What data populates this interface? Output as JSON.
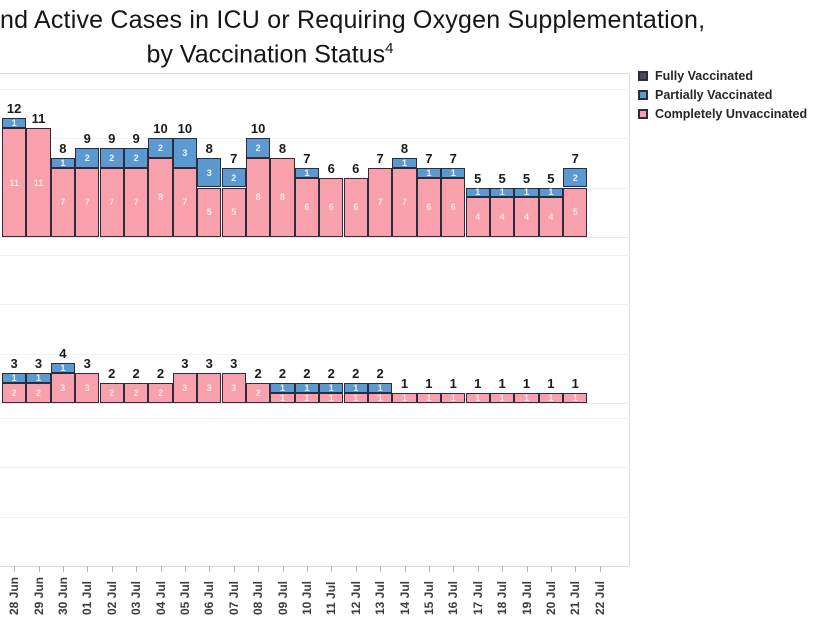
{
  "title": {
    "line1": "nd Active Cases in ICU or Requiring Oxygen Supplementation,",
    "line2": "by Vaccination Status",
    "superscript": "4"
  },
  "legend": {
    "items": [
      {
        "label": "Fully Vaccinated",
        "color": "#484b5a"
      },
      {
        "label": "Partially Vaccinated",
        "color": "#5b9ad0"
      },
      {
        "label": "Completely Unvaccinated",
        "color": "#f8a1ac"
      }
    ]
  },
  "colors": {
    "fully_vaccinated": "#484b5a",
    "partially_vaccinated": "#5b9ad0",
    "completely_unvaccinated": "#f8a1ac",
    "bar_border": "#2b2c3c",
    "grid": "#f2f2f2",
    "axis": "#d9d9d9"
  },
  "chart_data": {
    "type": "bar",
    "stacked": true,
    "grid": "horizontal, every 5 units, very light",
    "legend_position": "top-right",
    "x_tick_rotation": -90,
    "categories": [
      "28 Jun",
      "29 Jun",
      "30 Jun",
      "01 Jul",
      "02 Jul",
      "03 Jul",
      "04 Jul",
      "05 Jul",
      "06 Jul",
      "07 Jul",
      "08 Jul",
      "09 Jul",
      "10 Jul",
      "11 Jul",
      "12 Jul",
      "13 Jul",
      "14 Jul",
      "15 Jul",
      "16 Jul",
      "17 Jul",
      "18 Jul",
      "19 Jul",
      "20 Jul",
      "21 Jul",
      "22 Jul"
    ],
    "panels": [
      {
        "name": "top-panel",
        "ylim": [
          0,
          16.5
        ],
        "series": [
          {
            "name": "Fully Vaccinated",
            "values": [
              0,
              0,
              0,
              0,
              0,
              0,
              0,
              0,
              0,
              0,
              0,
              0,
              0,
              0,
              0,
              0,
              0,
              0,
              0,
              0,
              0,
              0,
              0,
              0,
              0
            ]
          },
          {
            "name": "Partially Vaccinated",
            "values": [
              1,
              0,
              1,
              2,
              2,
              2,
              2,
              3,
              3,
              2,
              2,
              0,
              1,
              0,
              0,
              0,
              1,
              1,
              1,
              1,
              1,
              1,
              1,
              2,
              0
            ]
          },
          {
            "name": "Completely Unvaccinated",
            "values": [
              11,
              11,
              7,
              7,
              7,
              7,
              8,
              7,
              5,
              5,
              8,
              8,
              6,
              6,
              6,
              7,
              7,
              6,
              6,
              4,
              4,
              4,
              4,
              5,
              0
            ]
          }
        ],
        "totals": [
          12,
          11,
          8,
          9,
          9,
          9,
          10,
          10,
          8,
          7,
          10,
          8,
          7,
          6,
          6,
          7,
          8,
          7,
          7,
          5,
          5,
          5,
          5,
          7,
          null
        ]
      },
      {
        "name": "bottom-panel",
        "ylim": [
          0,
          16.5
        ],
        "series": [
          {
            "name": "Fully Vaccinated",
            "values": [
              0,
              0,
              0,
              0,
              0,
              0,
              0,
              0,
              0,
              0,
              0,
              0,
              0,
              0,
              0,
              0,
              0,
              0,
              0,
              0,
              0,
              0,
              0,
              0,
              0
            ]
          },
          {
            "name": "Partially Vaccinated",
            "values": [
              1,
              1,
              1,
              0,
              0,
              0,
              0,
              0,
              0,
              0,
              0,
              1,
              1,
              1,
              1,
              1,
              0,
              0,
              0,
              0,
              0,
              0,
              0,
              0,
              0
            ]
          },
          {
            "name": "Completely Unvaccinated",
            "values": [
              2,
              2,
              3,
              3,
              2,
              2,
              2,
              3,
              3,
              3,
              2,
              1,
              1,
              1,
              1,
              1,
              1,
              1,
              1,
              1,
              1,
              1,
              1,
              1,
              0
            ]
          }
        ],
        "totals": [
          3,
          3,
          4,
          3,
          2,
          2,
          2,
          3,
          3,
          3,
          2,
          2,
          2,
          2,
          2,
          2,
          1,
          1,
          1,
          1,
          1,
          1,
          1,
          1,
          null
        ]
      }
    ]
  }
}
